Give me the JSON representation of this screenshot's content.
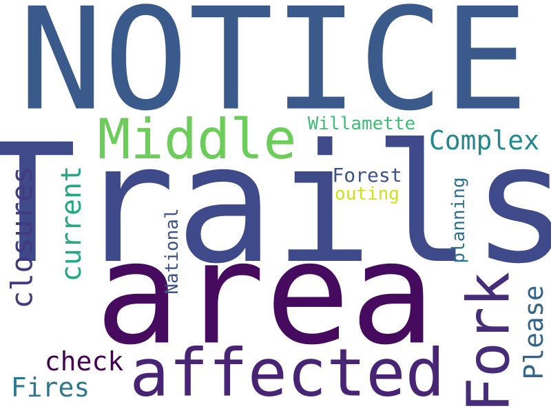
{
  "words": [
    {
      "text": "NOTICE",
      "color": "#3b5a8c"
    },
    {
      "text": "Trails",
      "color": "#3e4a89"
    },
    {
      "text": "area",
      "color": "#460b5e"
    },
    {
      "text": "Middle",
      "color": "#6ccd5a"
    },
    {
      "text": "affected",
      "color": "#482475"
    },
    {
      "text": "Fork",
      "color": "#472c7a"
    },
    {
      "text": "Complex",
      "color": "#23888e"
    },
    {
      "text": "closures",
      "color": "#443a83"
    },
    {
      "text": "current",
      "color": "#22a884"
    },
    {
      "text": "Willamette",
      "color": "#3ebc73"
    },
    {
      "text": "Forest",
      "color": "#3b528b"
    },
    {
      "text": "outing",
      "color": "#cde11d"
    },
    {
      "text": "planning",
      "color": "#2c718e"
    },
    {
      "text": "National",
      "color": "#3b528b"
    },
    {
      "text": "Please",
      "color": "#32648e"
    },
    {
      "text": "check",
      "color": "#440154"
    },
    {
      "text": "Fires",
      "color": "#2a788e"
    }
  ]
}
